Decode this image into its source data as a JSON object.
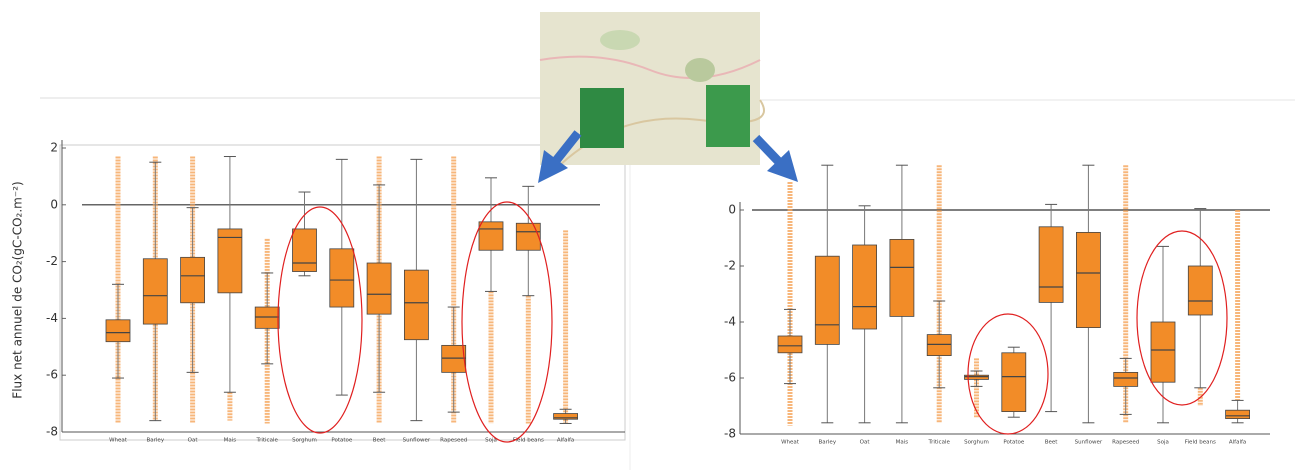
{
  "chart_data": [
    {
      "type": "box",
      "y_label": "Flux net annuel de CO₂(gC-CO₂.m⁻²)",
      "ylim": [
        -8.2,
        2.1
      ],
      "yticks": [
        2,
        0,
        -2,
        -4,
        -6,
        -8
      ],
      "hline": 0,
      "color": "#f28c28",
      "categories": [
        "Wheat",
        "Barley",
        "Oat",
        "Mais",
        "Triticale",
        "Sorghum",
        "Potatoe",
        "Beet",
        "Sunflower",
        "Rapeseed",
        "Soja",
        "Field beans",
        "Alfalfa"
      ],
      "boxes": [
        {
          "low": -6.1,
          "q1": -4.82,
          "median": -4.5,
          "q3": -4.05,
          "high": -2.8,
          "fliers": [
            1.7,
            -7.7
          ]
        },
        {
          "low": -7.6,
          "q1": -4.2,
          "median": -3.2,
          "q3": -1.9,
          "high": 1.5,
          "fliers": [
            1.7,
            -7.6
          ]
        },
        {
          "low": -5.9,
          "q1": -3.45,
          "median": -2.5,
          "q3": -1.85,
          "high": -0.1,
          "fliers": [
            1.7,
            -7.7
          ]
        },
        {
          "low": -6.6,
          "q1": -3.1,
          "median": -1.15,
          "q3": -0.85,
          "high": 1.7,
          "fliers": [
            -6.6,
            -7.6
          ]
        },
        {
          "low": -5.6,
          "q1": -4.35,
          "median": -3.95,
          "q3": -3.6,
          "high": -2.4,
          "fliers": [
            -1.2,
            -7.7
          ]
        },
        {
          "low": -2.5,
          "q1": -2.35,
          "median": -2.05,
          "q3": -0.85,
          "high": 0.45
        },
        {
          "low": -6.7,
          "q1": -3.6,
          "median": -2.65,
          "q3": -1.55,
          "high": 1.6
        },
        {
          "low": -6.6,
          "q1": -3.85,
          "median": -3.15,
          "q3": -2.05,
          "high": 0.7,
          "fliers": [
            1.7,
            -7.7
          ]
        },
        {
          "low": -7.6,
          "q1": -4.75,
          "median": -3.45,
          "q3": -2.3,
          "high": 1.6
        },
        {
          "low": -7.3,
          "q1": -5.9,
          "median": -5.4,
          "q3": -4.95,
          "high": -3.6,
          "fliers": [
            1.7,
            -7.7
          ]
        },
        {
          "low": -3.05,
          "q1": -1.6,
          "median": -0.85,
          "q3": -0.6,
          "high": 0.95,
          "fliers": [
            -3.05,
            -7.7
          ]
        },
        {
          "low": -3.2,
          "q1": -1.6,
          "median": -0.95,
          "q3": -0.65,
          "high": 0.65,
          "fliers": [
            -3.2,
            -7.7
          ]
        },
        {
          "low": -7.7,
          "q1": -7.55,
          "median": -7.5,
          "q3": -7.35,
          "high": -7.2,
          "fliers": [
            -0.9,
            -7.7
          ]
        }
      ]
    },
    {
      "type": "box",
      "ylim": [
        -8.3,
        1.2
      ],
      "yticks": [
        0,
        -2,
        -4,
        -6,
        -8
      ],
      "hline": 0,
      "color": "#f28c28",
      "categories": [
        "Wheat",
        "Barley",
        "Oat",
        "Mais",
        "Triticale",
        "Sorghum",
        "Potatoe",
        "Beet",
        "Sunflower",
        "Rapeseed",
        "Soja",
        "Field beans",
        "Alfalfa"
      ],
      "boxes": [
        {
          "low": -6.2,
          "q1": -5.1,
          "median": -4.85,
          "q3": -4.5,
          "high": -3.55,
          "fliers": [
            1.0,
            -7.7
          ]
        },
        {
          "low": -7.6,
          "q1": -4.8,
          "median": -4.1,
          "q3": -1.65,
          "high": 1.6
        },
        {
          "low": -7.6,
          "q1": -4.25,
          "median": -3.45,
          "q3": -1.25,
          "high": 0.15
        },
        {
          "low": -7.6,
          "q1": -3.8,
          "median": -2.05,
          "q3": -1.05,
          "high": 1.6
        },
        {
          "low": -6.35,
          "q1": -5.2,
          "median": -4.8,
          "q3": -4.45,
          "high": -3.25,
          "fliers": [
            1.6,
            -7.6
          ]
        },
        {
          "low": -6.3,
          "q1": -6.05,
          "median": -5.95,
          "q3": -5.9,
          "high": -5.75,
          "fliers": [
            -5.3,
            -7.4
          ]
        },
        {
          "low": -7.4,
          "q1": -7.2,
          "median": -5.95,
          "q3": -5.1,
          "high": -4.9
        },
        {
          "low": -7.2,
          "q1": -3.3,
          "median": -2.75,
          "q3": -0.6,
          "high": 0.2
        },
        {
          "low": -7.6,
          "q1": -4.2,
          "median": -2.25,
          "q3": -0.8,
          "high": 1.6
        },
        {
          "low": -7.3,
          "q1": -6.3,
          "median": -6.0,
          "q3": -5.8,
          "high": -5.3,
          "fliers": [
            1.6,
            -7.6
          ]
        },
        {
          "low": -7.6,
          "q1": -6.15,
          "median": -5.0,
          "q3": -4.0,
          "high": -1.3
        },
        {
          "low": -6.35,
          "q1": -3.75,
          "median": -3.25,
          "q3": -2.0,
          "high": 0.05,
          "fliers": [
            -6.35,
            -7.0
          ]
        },
        {
          "low": -7.6,
          "q1": -7.45,
          "median": -7.35,
          "q3": -7.15,
          "high": -6.8,
          "fliers": [
            0.0,
            -6.8
          ]
        }
      ]
    }
  ]
}
